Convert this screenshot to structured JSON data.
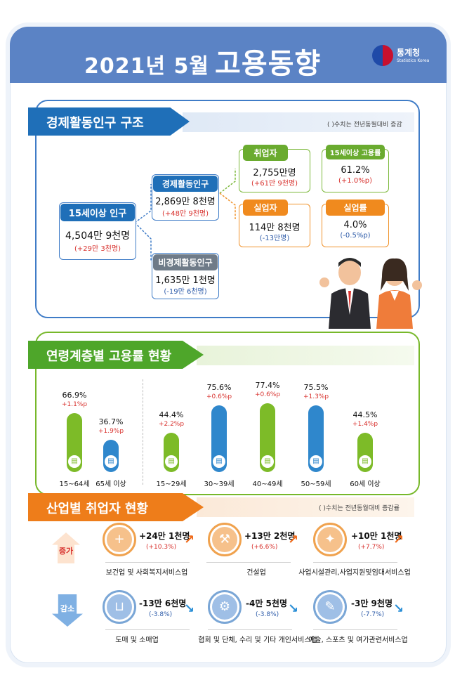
{
  "header": {
    "title_prefix": "2021년  5월",
    "title_main": "고용동향",
    "org_name": "통계청",
    "org_sub": "Statistics Korea",
    "bg_color": "#5b83c5"
  },
  "structure": {
    "heading": "경제활동인구 구조",
    "note": "( )수치는 전년동월대비 증감",
    "pop15": {
      "label": "15세이상 인구",
      "value": "4,504만 9천명",
      "change": "(+29만 3천명)"
    },
    "econ_active": {
      "label": "경제활동인구",
      "value": "2,869만 8천명",
      "change": "(+48만 9천명)"
    },
    "non_active": {
      "label": "비경제활동인구",
      "value": "1,635만 1천명",
      "change": "(-19만 6천명)"
    },
    "employed": {
      "label": "취업자",
      "value": "2,755만명",
      "change": "(+61만 9천명)"
    },
    "emp_rate": {
      "label": "15세이상 고용률",
      "value": "61.2%",
      "change": "(+1.0%p)"
    },
    "unemployed": {
      "label": "실업자",
      "value": "114만 8천명",
      "change": "(-13만명)"
    },
    "unemp_rate": {
      "label": "실업률",
      "value": "4.0%",
      "change": "(-0.5%p)"
    }
  },
  "age": {
    "heading": "연령계층별 고용률 현황",
    "items": [
      {
        "age": "15~64세",
        "value": "66.9%",
        "change": "+1.1%p",
        "color": "green",
        "rate": 66.9
      },
      {
        "age": "65세 이상",
        "value": "36.7%",
        "change": "+1.9%p",
        "color": "blue",
        "rate": 36.7
      },
      {
        "age": "15~29세",
        "value": "44.4%",
        "change": "+2.2%p",
        "color": "green",
        "rate": 44.4
      },
      {
        "age": "30~39세",
        "value": "75.6%",
        "change": "+0.6%p",
        "color": "blue",
        "rate": 75.6
      },
      {
        "age": "40~49세",
        "value": "77.4%",
        "change": "+0.6%p",
        "color": "green",
        "rate": 77.4
      },
      {
        "age": "50~59세",
        "value": "75.5%",
        "change": "+1.3%p",
        "color": "blue",
        "rate": 75.5
      },
      {
        "age": "60세 이상",
        "value": "44.5%",
        "change": "+1.4%p",
        "color": "green",
        "rate": 44.5
      }
    ]
  },
  "industry": {
    "heading": "산업별 취업자 현황",
    "note": "( )수치는 전년동월대비 증감률",
    "increase_label": "증가",
    "decrease_label": "감소",
    "increase": [
      {
        "value": "+24만 1천명",
        "pct": "(+10.3%)",
        "name": "보건업 및 사회복지서비스업",
        "icon": "medical-kit-icon"
      },
      {
        "value": "+13만 2천명",
        "pct": "(+6.6%)",
        "name": "건설업",
        "icon": "excavator-icon"
      },
      {
        "value": "+10만 1천명",
        "pct": "(+7.7%)",
        "name": "사업시설관리,사업지원및임대서비스업",
        "icon": "facility-tools-icon"
      }
    ],
    "decrease": [
      {
        "value": "-13만 6천명",
        "pct": "(-3.8%)",
        "name": "도매 및 소매업",
        "icon": "shopping-basket-icon"
      },
      {
        "value": "-4만 5천명",
        "pct": "(-3.8%)",
        "name": "협회 및 단체, 수리 및 기타 개인서비스업",
        "icon": "wrench-building-icon"
      },
      {
        "value": "-3만 9천명",
        "pct": "(-7.7%)",
        "name": "예술, 스포츠 및 여가관련서비스업",
        "icon": "sports-icon"
      }
    ]
  }
}
